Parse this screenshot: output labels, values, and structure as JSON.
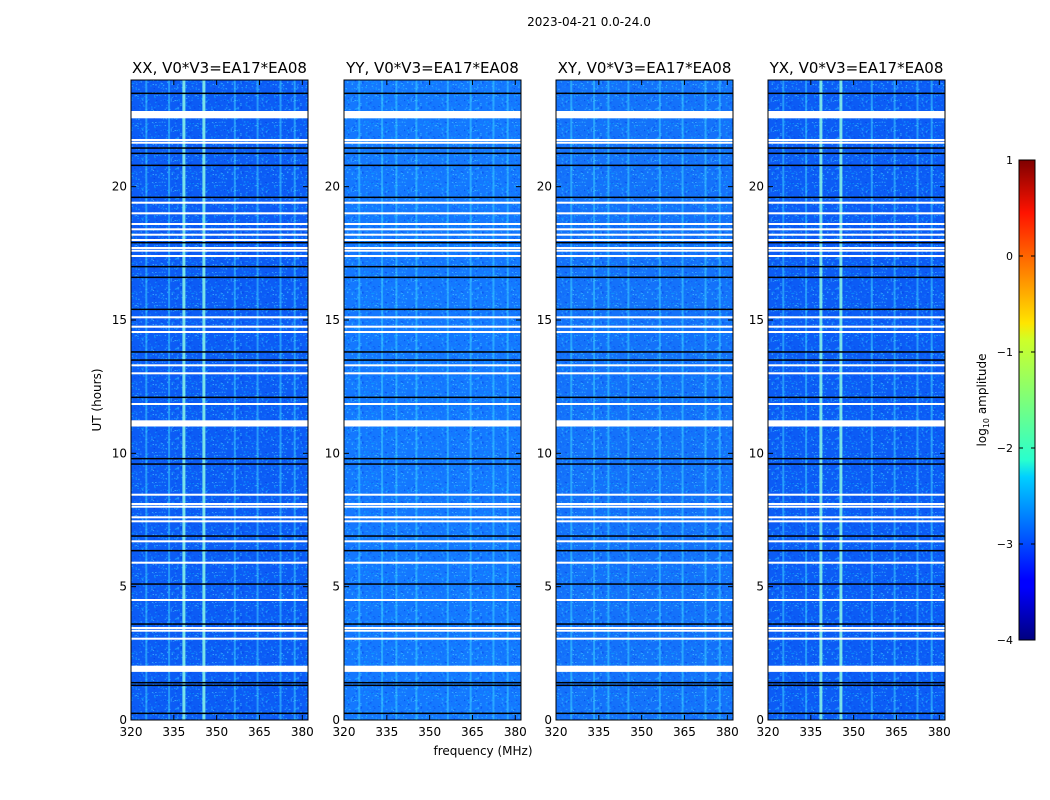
{
  "chart_data": {
    "type": "heatmap",
    "suptitle": "2023-04-21 0.0-24.0",
    "xlabel": "frequency (MHz)",
    "ylabel": "UT (hours)",
    "xlim": [
      320,
      382
    ],
    "ylim": [
      0,
      24
    ],
    "xticks": [
      320,
      335,
      350,
      365,
      380
    ],
    "yticks": [
      0,
      5,
      10,
      15,
      20
    ],
    "panels": [
      {
        "title": "XX, V0*V3=EA17*EA08"
      },
      {
        "title": "YY, V0*V3=EA17*EA08"
      },
      {
        "title": "XY, V0*V3=EA17*EA08"
      },
      {
        "title": "YX, V0*V3=EA17*EA08"
      }
    ],
    "colorbar": {
      "label": "log10 amplitude",
      "label_base": "log",
      "label_sub": "10",
      "label_rest": " amplitude",
      "min": -4,
      "max": 1,
      "ticks": [
        "1",
        "0",
        "−1",
        "−2",
        "−3",
        "−4"
      ],
      "colormap": "jet"
    },
    "flagged_rows_ut": [
      1.85,
      1.9,
      2.0,
      3.05,
      3.35,
      3.45,
      4.5,
      5.9,
      6.7,
      7.45,
      7.6,
      8.0,
      8.1,
      8.45,
      11.1,
      11.2,
      11.85,
      13.0,
      13.3,
      14.55,
      14.75,
      15.1,
      17.4,
      17.6,
      17.7,
      18.0,
      18.2,
      18.4,
      18.6,
      19.0,
      19.4,
      21.65,
      21.75,
      22.6,
      22.7,
      22.8
    ],
    "dark_rows_ut": [
      0.25,
      1.3,
      1.4,
      3.6,
      5.1,
      6.35,
      6.9,
      9.6,
      9.8,
      12.1,
      13.5,
      13.8,
      15.4,
      16.6,
      17.0,
      17.9,
      19.6,
      20.8,
      21.25,
      21.45,
      23.5
    ]
  }
}
